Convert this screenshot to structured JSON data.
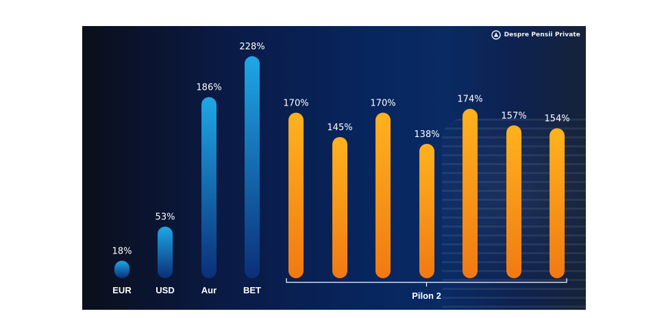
{
  "brand": {
    "name": "Despre Pensii Private",
    "icon": "triangle-in-circle-icon"
  },
  "colors": {
    "blue_top": "#1ea7e6",
    "blue_bottom": "#0b2f78",
    "orange_top": "#ffb21e",
    "orange_bottom": "#f07a12"
  },
  "chart_data": {
    "type": "bar",
    "categories": [
      "EUR",
      "USD",
      "Aur",
      "BET",
      "",
      "",
      "",
      "",
      "",
      "",
      ""
    ],
    "values": [
      18,
      53,
      186,
      228,
      170,
      145,
      170,
      138,
      174,
      157,
      154
    ],
    "value_labels": [
      "18%",
      "53%",
      "186%",
      "228%",
      "170%",
      "145%",
      "170%",
      "138%",
      "174%",
      "157%",
      "154%"
    ],
    "groups": [
      {
        "label": "",
        "count": 4,
        "color": "blue"
      },
      {
        "label": "Pilon 2",
        "count": 7,
        "color": "orange"
      }
    ],
    "ylim": [
      0,
      228
    ],
    "grid": false,
    "legend": "none"
  }
}
